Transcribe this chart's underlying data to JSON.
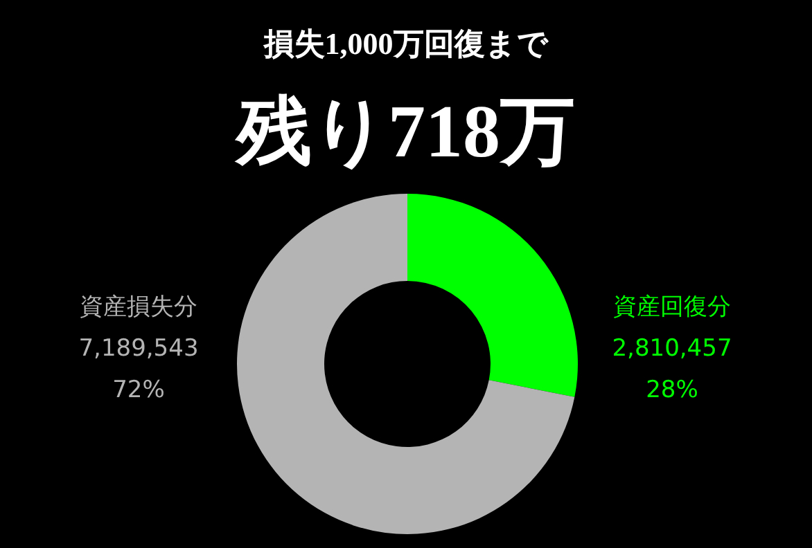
{
  "chart_data": {
    "type": "donut",
    "title": "損失1,000万回復まで",
    "subtitle": "残り718万",
    "categories": [
      "資産回復分",
      "資産損失分"
    ],
    "values": [
      2810457,
      7189543
    ],
    "colors": [
      "#00ff00",
      "#b4b4b4"
    ],
    "value_labels": [
      "2,810,457",
      "7,189,543"
    ],
    "annotations": [
      "28%",
      "72%"
    ]
  }
}
